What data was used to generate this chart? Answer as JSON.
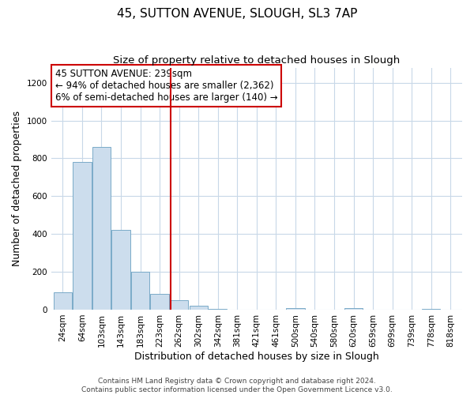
{
  "title": "45, SUTTON AVENUE, SLOUGH, SL3 7AP",
  "subtitle": "Size of property relative to detached houses in Slough",
  "xlabel": "Distribution of detached houses by size in Slough",
  "ylabel": "Number of detached properties",
  "bar_labels": [
    "24sqm",
    "64sqm",
    "103sqm",
    "143sqm",
    "183sqm",
    "223sqm",
    "262sqm",
    "302sqm",
    "342sqm",
    "381sqm",
    "421sqm",
    "461sqm",
    "500sqm",
    "540sqm",
    "580sqm",
    "620sqm",
    "659sqm",
    "699sqm",
    "739sqm",
    "778sqm",
    "818sqm"
  ],
  "bar_values": [
    90,
    780,
    860,
    420,
    200,
    85,
    50,
    20,
    5,
    0,
    0,
    0,
    8,
    0,
    0,
    8,
    0,
    0,
    0,
    5,
    0
  ],
  "bar_color": "#ccdded",
  "bar_edgecolor": "#7aaac8",
  "vline_x": 5.55,
  "vline_color": "#cc0000",
  "annotation_lines": [
    "45 SUTTON AVENUE: 239sqm",
    "← 94% of detached houses are smaller (2,362)",
    "6% of semi-detached houses are larger (140) →"
  ],
  "annotation_box_edgecolor": "#cc0000",
  "annotation_box_facecolor": "#ffffff",
  "ylim": [
    0,
    1280
  ],
  "yticks": [
    0,
    200,
    400,
    600,
    800,
    1000,
    1200
  ],
  "footer_lines": [
    "Contains HM Land Registry data © Crown copyright and database right 2024.",
    "Contains public sector information licensed under the Open Government Licence v3.0."
  ],
  "bg_color": "#ffffff",
  "plot_bg_color": "#ffffff",
  "grid_color": "#c8d8e8",
  "title_fontsize": 11,
  "subtitle_fontsize": 9.5,
  "axis_label_fontsize": 9,
  "tick_fontsize": 7.5,
  "annotation_fontsize": 8.5,
  "footer_fontsize": 6.5
}
